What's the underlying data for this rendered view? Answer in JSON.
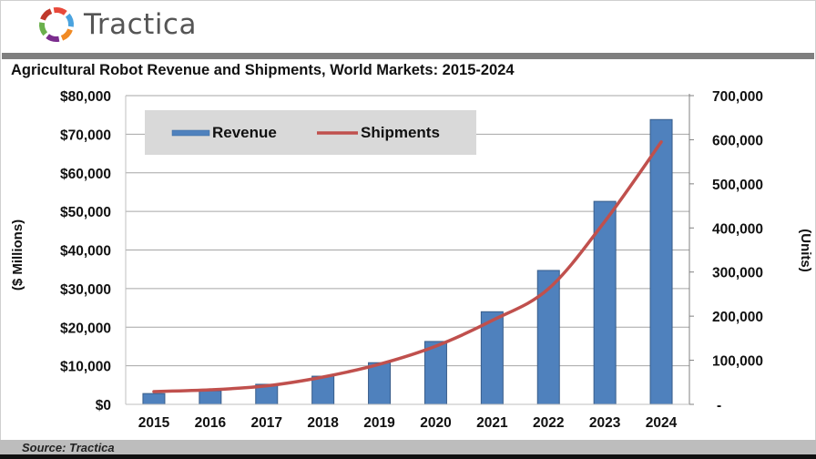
{
  "brand": {
    "name": "Tractica",
    "logo_colors": [
      "#e8493b",
      "#4aa3df",
      "#f08a24",
      "#7b2d8e",
      "#6ab04c",
      "#c0392b"
    ]
  },
  "footer": {
    "source": "Source: Tractica"
  },
  "chart_data": {
    "type": "bar",
    "title": "Agricultural Robot Revenue and Shipments, World Markets: 2015-2024",
    "categories": [
      "2015",
      "2016",
      "2017",
      "2018",
      "2019",
      "2020",
      "2021",
      "2022",
      "2023",
      "2024"
    ],
    "series": [
      {
        "name": "Revenue",
        "type": "bar",
        "axis": "left",
        "color": "#4f81bd",
        "values": [
          2800,
          3500,
          5200,
          7300,
          10800,
          16300,
          24000,
          34700,
          52600,
          73800
        ]
      },
      {
        "name": "Shipments",
        "type": "line",
        "axis": "right",
        "color": "#c0504d",
        "values": [
          29000,
          33000,
          42000,
          62000,
          91000,
          132000,
          190000,
          262000,
          415000,
          595000
        ]
      }
    ],
    "ylabel": "($ Millions)",
    "y2label": "(Units)",
    "ylim": [
      0,
      80000
    ],
    "y2lim": [
      0,
      700000
    ],
    "yticks": [
      "$0",
      "$10,000",
      "$20,000",
      "$30,000",
      "$40,000",
      "$50,000",
      "$60,000",
      "$70,000",
      "$80,000"
    ],
    "y2ticks": [
      "-",
      "100,000",
      "200,000",
      "300,000",
      "400,000",
      "500,000",
      "600,000",
      "700,000"
    ],
    "grid": true,
    "legend": {
      "position": "top-left",
      "background": "#d9d9d9",
      "entries": [
        "Revenue",
        "Shipments"
      ]
    }
  }
}
